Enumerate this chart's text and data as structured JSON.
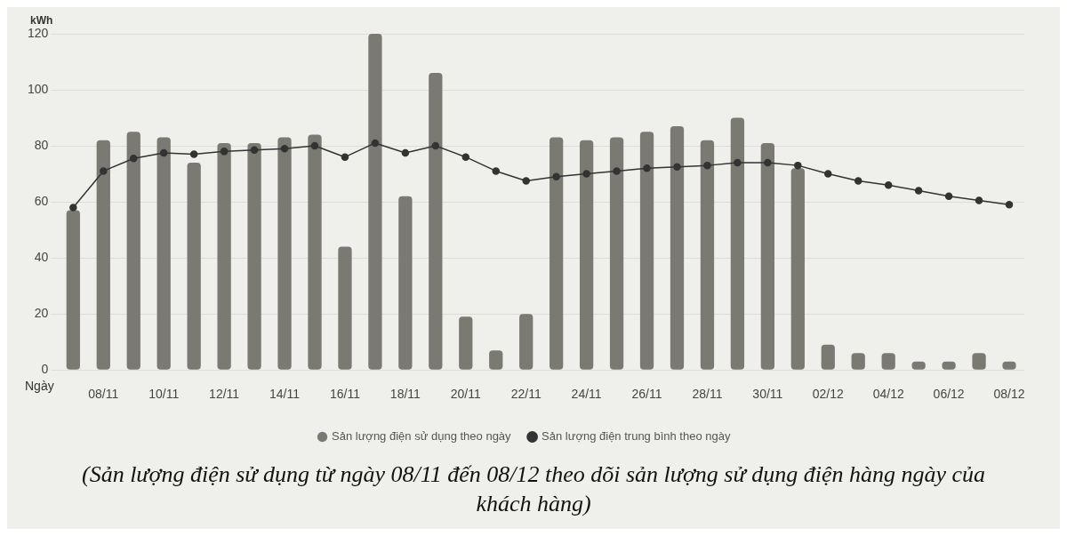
{
  "chart_data": {
    "type": "bar",
    "ylabel": "kWh",
    "xlabel": "Ngày",
    "categories": [
      null,
      "08/11",
      null,
      "10/11",
      null,
      "12/11",
      null,
      "14/11",
      null,
      "16/11",
      null,
      "18/11",
      null,
      "20/11",
      null,
      "22/11",
      null,
      "24/11",
      null,
      "26/11",
      null,
      "28/11",
      null,
      "30/11",
      null,
      "02/12",
      null,
      "04/12",
      null,
      "06/12",
      null,
      "08/12"
    ],
    "series": [
      {
        "name": "Sản lượng điện sử dụng theo ngày",
        "color": "#7a7a72",
        "values": [
          57,
          82,
          85,
          83,
          74,
          81,
          81,
          83,
          84,
          44,
          120,
          62,
          106,
          19,
          7,
          20,
          83,
          82,
          83,
          85,
          87,
          82,
          90,
          81,
          72,
          9,
          6,
          6,
          3,
          3,
          6,
          3
        ]
      },
      {
        "name": "Sản lượng điện trung bình theo ngày",
        "type": "line",
        "color": "#333333",
        "values": [
          58,
          71,
          75.5,
          77.5,
          77,
          78,
          78.5,
          79,
          80,
          76,
          81,
          77.5,
          80,
          76,
          71,
          67.5,
          69,
          70,
          71,
          72,
          72.5,
          73,
          74,
          74,
          73,
          70,
          67.5,
          66,
          64,
          62,
          60.5,
          59
        ]
      }
    ],
    "ylim": [
      0,
      120
    ],
    "yticks": [
      0,
      20,
      40,
      60,
      80,
      100,
      120
    ],
    "grid": "y",
    "legend": "bottom",
    "marker": "circle",
    "line_style": "solid",
    "annotations": [
      "(Sản lượng điện sử dụng từ ngày 08/11 đến 08/12 theo dõi sản lượng sử dụng điện hàng ngày của khách hàng)"
    ]
  }
}
